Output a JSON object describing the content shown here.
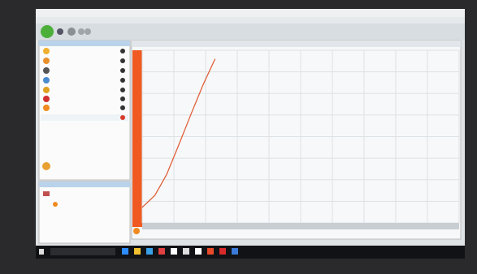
{
  "graph": {
    "curve": {
      "x": [
        0,
        0.04,
        0.077,
        0.115,
        0.154,
        0.192,
        0.23
      ],
      "y": [
        0.09,
        0.16,
        0.28,
        0.45,
        0.63,
        0.8,
        0.95
      ]
    }
  }
}
